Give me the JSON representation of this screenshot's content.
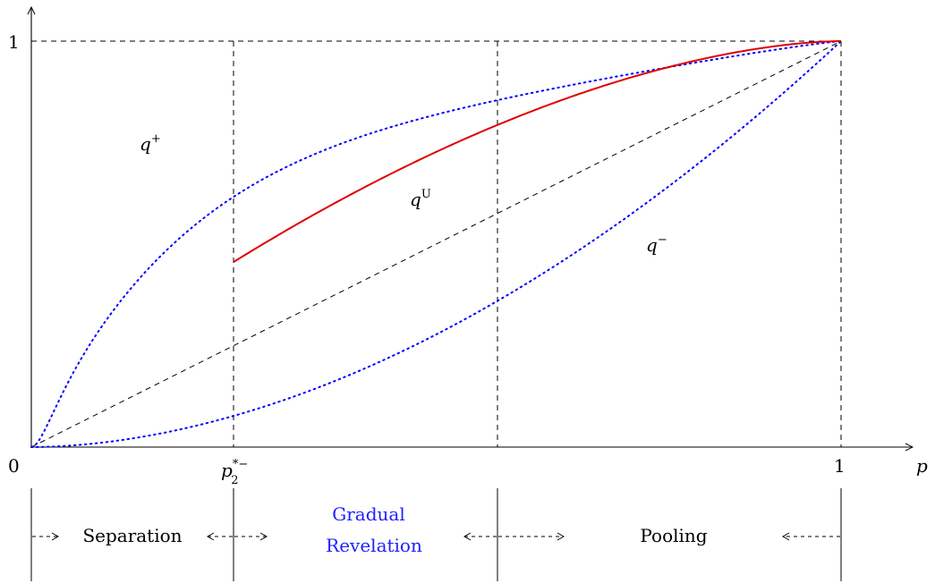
{
  "figure": {
    "axis": {
      "x_label": "p",
      "origin_label": "0",
      "x_max_label": "1",
      "y_max_label": "1",
      "threshold_label_base": "p",
      "threshold_label_sup": "*−",
      "threshold_label_sub": "2"
    },
    "curves": {
      "q_plus": {
        "base": "q",
        "sup": "+",
        "color": "#0000ff",
        "style": "dotted"
      },
      "q_minus": {
        "base": "q",
        "sup": "−",
        "color": "#0000ff",
        "style": "dotted"
      },
      "q_u": {
        "base": "q",
        "sup": "U",
        "color": "#e00000",
        "style": "solid"
      },
      "diagonal": {
        "color": "#000000",
        "style": "dashed"
      }
    },
    "regions": {
      "separation": "Separation",
      "gradual_line1": "Gradual",
      "gradual_line2": "Revelation",
      "pooling": "Pooling"
    },
    "colors": {
      "axes": "#000000",
      "gradual_text": "#1f1fff"
    }
  }
}
